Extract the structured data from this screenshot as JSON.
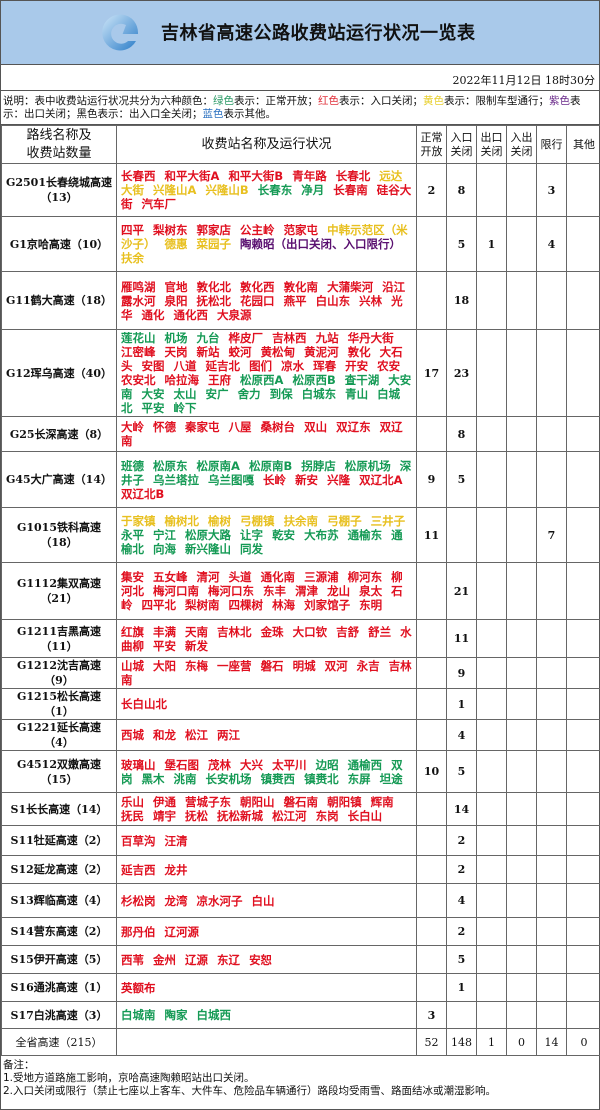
{
  "header": {
    "title": "吉林省高速公路收费站运行状况一览表",
    "datetime": "2022年11月12日 18时30分"
  },
  "legend": {
    "prefix": "说明：表中收费站运行状况共分为六种颜色：",
    "items": [
      {
        "color_word": "绿色",
        "text": "表示：正常开放；",
        "color": "#2a9a66"
      },
      {
        "color_word": "红色",
        "text": "表示：入口关闭；",
        "color": "#e0303a"
      },
      {
        "color_word": "黄色",
        "text": "表示：限制车型通行；",
        "color": "#e8d030"
      },
      {
        "color_word": "紫色",
        "text": "表示：出口关闭；",
        "color": "#6a2a8a"
      },
      {
        "color_word": "黑色",
        "text": "表示：出入口全关闭；",
        "color": "#111111"
      },
      {
        "color_word": "蓝色",
        "text": "表示其他。",
        "color": "#2a70c0"
      }
    ]
  },
  "colors": {
    "g": "#159a55",
    "r": "#e01020",
    "y": "#e8c020",
    "p": "#5a1070",
    "k": "#111111",
    "b": "#2a70c0"
  },
  "table": {
    "headers": [
      "路线名称及\n收费站数量",
      "收费站名称及运行状况",
      "正常\n开放",
      "入口\n关闭",
      "出口\n关闭",
      "入出\n关闭",
      "限行",
      "其他"
    ],
    "rows": [
      {
        "route": "G2501长春绕城高速（13）",
        "stations": [
          [
            "长春西",
            "r"
          ],
          [
            "和平大街A",
            "r"
          ],
          [
            "和平大街B",
            "r"
          ],
          [
            "青年路",
            "r"
          ],
          [
            "长春北",
            "r"
          ],
          [
            "远达大街",
            "y"
          ],
          [
            "兴隆山A",
            "y"
          ],
          [
            "兴隆山B",
            "y"
          ],
          [
            "长春东",
            "g"
          ],
          [
            "净月",
            "g"
          ],
          [
            "长春南",
            "r"
          ],
          [
            "硅谷大街",
            "r"
          ],
          [
            "汽车厂",
            "r"
          ]
        ],
        "counts": [
          "2",
          "8",
          "",
          "",
          "3",
          ""
        ]
      },
      {
        "route": "G1京哈高速（10）",
        "stations": [
          [
            "四平",
            "r"
          ],
          [
            "梨树东",
            "r"
          ],
          [
            "郭家店",
            "r"
          ],
          [
            "公主岭",
            "r"
          ],
          [
            "范家屯",
            "r"
          ],
          [
            "中韩示范区（米沙子）",
            "y"
          ],
          [
            "德惠",
            "y"
          ],
          [
            "菜园子",
            "y"
          ],
          [
            "陶赖昭（出口关闭、入口限行）",
            "p"
          ],
          [
            "扶余",
            "y"
          ]
        ],
        "counts": [
          "",
          "5",
          "1",
          "",
          "4",
          ""
        ]
      },
      {
        "route": "G11鹤大高速（18）",
        "stations": [
          [
            "雁鸣湖",
            "r"
          ],
          [
            "官地",
            "r"
          ],
          [
            "敦化北",
            "r"
          ],
          [
            "敦化西",
            "r"
          ],
          [
            "敦化南",
            "r"
          ],
          [
            "大蒲柴河",
            "r"
          ],
          [
            "沿江",
            "r"
          ],
          [
            "露水河",
            "r"
          ],
          [
            "泉阳",
            "r"
          ],
          [
            "抚松北",
            "r"
          ],
          [
            "花园口",
            "r"
          ],
          [
            "燕平",
            "r"
          ],
          [
            "白山东",
            "r"
          ],
          [
            "兴林",
            "r"
          ],
          [
            "光华",
            "r"
          ],
          [
            "通化",
            "r"
          ],
          [
            "通化西",
            "r"
          ],
          [
            "大泉源",
            "r"
          ]
        ],
        "counts": [
          "",
          "18",
          "",
          "",
          "",
          ""
        ]
      },
      {
        "route": "G12珲乌高速（40）",
        "stations": [
          [
            "莲花山",
            "g"
          ],
          [
            "机场",
            "g"
          ],
          [
            "九台",
            "g"
          ],
          [
            "桦皮厂",
            "r"
          ],
          [
            "吉林西",
            "r"
          ],
          [
            "九站",
            "r"
          ],
          [
            "华丹大街",
            "r"
          ],
          [
            "江密峰",
            "r"
          ],
          [
            "天岗",
            "r"
          ],
          [
            "新站",
            "r"
          ],
          [
            "蛟河",
            "r"
          ],
          [
            "黄松甸",
            "r"
          ],
          [
            "黄泥河",
            "r"
          ],
          [
            "敦化",
            "r"
          ],
          [
            "大石头",
            "r"
          ],
          [
            "安图",
            "r"
          ],
          [
            "八道",
            "r"
          ],
          [
            "延吉北",
            "r"
          ],
          [
            "图们",
            "r"
          ],
          [
            "凉水",
            "r"
          ],
          [
            "珲春",
            "r"
          ],
          [
            "开安",
            "r"
          ],
          [
            "农安",
            "r"
          ],
          [
            "农安北",
            "r"
          ],
          [
            "哈拉海",
            "r"
          ],
          [
            "王府",
            "r"
          ],
          [
            "松原西A",
            "g"
          ],
          [
            "松原西B",
            "g"
          ],
          [
            "查干湖",
            "g"
          ],
          [
            "大安南",
            "g"
          ],
          [
            "大安",
            "g"
          ],
          [
            "太山",
            "g"
          ],
          [
            "安广",
            "g"
          ],
          [
            "舍力",
            "g"
          ],
          [
            "到保",
            "g"
          ],
          [
            "白城东",
            "g"
          ],
          [
            "青山",
            "g"
          ],
          [
            "白城北",
            "g"
          ],
          [
            "平安",
            "g"
          ],
          [
            "岭下",
            "g"
          ]
        ],
        "counts": [
          "17",
          "23",
          "",
          "",
          "",
          ""
        ]
      },
      {
        "route": "G25长深高速（8）",
        "stations": [
          [
            "大岭",
            "r"
          ],
          [
            "怀德",
            "r"
          ],
          [
            "秦家屯",
            "r"
          ],
          [
            "八屋",
            "r"
          ],
          [
            "桑树台",
            "r"
          ],
          [
            "双山",
            "r"
          ],
          [
            "双辽东",
            "r"
          ],
          [
            "双辽南",
            "r"
          ]
        ],
        "counts": [
          "",
          "8",
          "",
          "",
          "",
          ""
        ]
      },
      {
        "route": "G45大广高速（14）",
        "stations": [
          [
            "班德",
            "g"
          ],
          [
            "松原东",
            "g"
          ],
          [
            "松原南A",
            "g"
          ],
          [
            "松原南B",
            "g"
          ],
          [
            "拐脖店",
            "g"
          ],
          [
            "松原机场",
            "g"
          ],
          [
            "深井子",
            "g"
          ],
          [
            "乌兰塔拉",
            "g"
          ],
          [
            "乌兰图嘎",
            "g"
          ],
          [
            "长岭",
            "r"
          ],
          [
            "新安",
            "r"
          ],
          [
            "兴隆",
            "r"
          ],
          [
            "双辽北A",
            "r"
          ],
          [
            "双辽北B",
            "r"
          ]
        ],
        "counts": [
          "9",
          "5",
          "",
          "",
          "",
          ""
        ]
      },
      {
        "route": "G1015铁科高速（18）",
        "stations": [
          [
            "于家镇",
            "y"
          ],
          [
            "榆树北",
            "y"
          ],
          [
            "榆树",
            "y"
          ],
          [
            "弓棚镇",
            "y"
          ],
          [
            "扶余南",
            "y"
          ],
          [
            "弓棚子",
            "y"
          ],
          [
            "三井子",
            "y"
          ],
          [
            "永平",
            "g"
          ],
          [
            "宁江",
            "g"
          ],
          [
            "松原大路",
            "g"
          ],
          [
            "让字",
            "g"
          ],
          [
            "乾安",
            "g"
          ],
          [
            "大布苏",
            "g"
          ],
          [
            "通榆东",
            "g"
          ],
          [
            "通榆北",
            "g"
          ],
          [
            "向海",
            "g"
          ],
          [
            "新兴隆山",
            "g"
          ],
          [
            "同发",
            "g"
          ]
        ],
        "counts": [
          "11",
          "",
          "",
          "",
          "7",
          ""
        ]
      },
      {
        "route": "G1112集双高速（21）",
        "stations": [
          [
            "集安",
            "r"
          ],
          [
            "五女峰",
            "r"
          ],
          [
            "清河",
            "r"
          ],
          [
            "头道",
            "r"
          ],
          [
            "通化南",
            "r"
          ],
          [
            "三源浦",
            "r"
          ],
          [
            "柳河东",
            "r"
          ],
          [
            "柳河北",
            "r"
          ],
          [
            "梅河口南",
            "r"
          ],
          [
            "梅河口东",
            "r"
          ],
          [
            "东丰",
            "r"
          ],
          [
            "渭津",
            "r"
          ],
          [
            "龙山",
            "r"
          ],
          [
            "泉太",
            "r"
          ],
          [
            "石岭",
            "r"
          ],
          [
            "四平北",
            "r"
          ],
          [
            "梨树南",
            "r"
          ],
          [
            "四棵树",
            "r"
          ],
          [
            "林海",
            "r"
          ],
          [
            "刘家馆子",
            "r"
          ],
          [
            "东明",
            "r"
          ]
        ],
        "counts": [
          "",
          "21",
          "",
          "",
          "",
          ""
        ]
      },
      {
        "route": "G1211吉黑高速（11）",
        "stations": [
          [
            "红旗",
            "r"
          ],
          [
            "丰满",
            "r"
          ],
          [
            "天南",
            "r"
          ],
          [
            "吉林北",
            "r"
          ],
          [
            "金珠",
            "r"
          ],
          [
            "大口钦",
            "r"
          ],
          [
            "吉舒",
            "r"
          ],
          [
            "舒兰",
            "r"
          ],
          [
            "水曲柳",
            "r"
          ],
          [
            "平安",
            "r"
          ],
          [
            "新发",
            "r"
          ]
        ],
        "counts": [
          "",
          "11",
          "",
          "",
          "",
          ""
        ]
      },
      {
        "route": "G1212沈吉高速（9）",
        "stations": [
          [
            "山城",
            "r"
          ],
          [
            "大阳",
            "r"
          ],
          [
            "东梅",
            "r"
          ],
          [
            "一座营",
            "r"
          ],
          [
            "磐石",
            "r"
          ],
          [
            "明城",
            "r"
          ],
          [
            "双河",
            "r"
          ],
          [
            "永吉",
            "r"
          ],
          [
            "吉林南",
            "r"
          ]
        ],
        "counts": [
          "",
          "9",
          "",
          "",
          "",
          ""
        ]
      },
      {
        "route": "G1215松长高速（1）",
        "stations": [
          [
            "长白山北",
            "r"
          ]
        ],
        "counts": [
          "",
          "1",
          "",
          "",
          "",
          ""
        ]
      },
      {
        "route": "G1221延长高速（4）",
        "stations": [
          [
            "西城",
            "r"
          ],
          [
            "和龙",
            "r"
          ],
          [
            "松江",
            "r"
          ],
          [
            "两江",
            "r"
          ]
        ],
        "counts": [
          "",
          "4",
          "",
          "",
          "",
          ""
        ]
      },
      {
        "route": "G4512双嫩高速（15）",
        "stations": [
          [
            "玻璃山",
            "r"
          ],
          [
            "堡石图",
            "r"
          ],
          [
            "茂林",
            "r"
          ],
          [
            "大兴",
            "r"
          ],
          [
            "太平川",
            "r"
          ],
          [
            "边昭",
            "g"
          ],
          [
            "通榆西",
            "g"
          ],
          [
            "双岗",
            "g"
          ],
          [
            "黑木",
            "g"
          ],
          [
            "洮南",
            "g"
          ],
          [
            "长安机场",
            "g"
          ],
          [
            "镇赉西",
            "g"
          ],
          [
            "镇赉北",
            "g"
          ],
          [
            "东屏",
            "g"
          ],
          [
            "坦途",
            "g"
          ]
        ],
        "counts": [
          "10",
          "5",
          "",
          "",
          "",
          ""
        ]
      },
      {
        "route": "S1长长高速（14）",
        "stations": [
          [
            "乐山",
            "r"
          ],
          [
            "伊通",
            "r"
          ],
          [
            "营城子东",
            "r"
          ],
          [
            "朝阳山",
            "r"
          ],
          [
            "磐石南",
            "r"
          ],
          [
            "朝阳镇",
            "r"
          ],
          [
            "辉南",
            "r"
          ],
          [
            "抚民",
            "r"
          ],
          [
            "靖宇",
            "r"
          ],
          [
            "抚松",
            "r"
          ],
          [
            "抚松新城",
            "r"
          ],
          [
            "松江河",
            "r"
          ],
          [
            "东岗",
            "r"
          ],
          [
            "长白山",
            "r"
          ]
        ],
        "counts": [
          "",
          "14",
          "",
          "",
          "",
          ""
        ]
      },
      {
        "route": "S11牡延高速（2）",
        "stations": [
          [
            "百草沟",
            "r"
          ],
          [
            "汪清",
            "r"
          ]
        ],
        "counts": [
          "",
          "2",
          "",
          "",
          "",
          ""
        ]
      },
      {
        "route": "S12延龙高速（2）",
        "stations": [
          [
            "延吉西",
            "r"
          ],
          [
            "龙井",
            "r"
          ]
        ],
        "counts": [
          "",
          "2",
          "",
          "",
          "",
          ""
        ]
      },
      {
        "route": "S13辉临高速（4）",
        "stations": [
          [
            "杉松岗",
            "r"
          ],
          [
            "龙湾",
            "r"
          ],
          [
            "凉水河子",
            "r"
          ],
          [
            "白山",
            "r"
          ]
        ],
        "counts": [
          "",
          "4",
          "",
          "",
          "",
          ""
        ]
      },
      {
        "route": "S14营东高速（2）",
        "stations": [
          [
            "那丹伯",
            "r"
          ],
          [
            "辽河源",
            "r"
          ]
        ],
        "counts": [
          "",
          "2",
          "",
          "",
          "",
          ""
        ]
      },
      {
        "route": "S15伊开高速（5）",
        "stations": [
          [
            "西苇",
            "r"
          ],
          [
            "金州",
            "r"
          ],
          [
            "辽源",
            "r"
          ],
          [
            "东辽",
            "r"
          ],
          [
            "安恕",
            "r"
          ]
        ],
        "counts": [
          "",
          "5",
          "",
          "",
          "",
          ""
        ]
      },
      {
        "route": "S16通洮高速（1）",
        "stations": [
          [
            "英额布",
            "r"
          ]
        ],
        "counts": [
          "",
          "1",
          "",
          "",
          "",
          ""
        ]
      },
      {
        "route": "S17白洮高速（3）",
        "stations": [
          [
            "白城南",
            "g"
          ],
          [
            "陶家",
            "g"
          ],
          [
            "白城西",
            "g"
          ]
        ],
        "counts": [
          "3",
          "",
          "",
          "",
          "",
          ""
        ]
      },
      {
        "route": "全省高速（215）",
        "stations": [],
        "counts": [
          "52",
          "148",
          "1",
          "0",
          "14",
          "0"
        ]
      }
    ]
  },
  "notes": {
    "title": "备注：",
    "lines": [
      "1.受地方道路施工影响，京哈高速陶赖昭站出口关闭。",
      "2.入口关闭或限行（禁止七座以上客车、大件车、危险品车辆通行）路段均受雨雪、路面结冰或潮湿影响。"
    ]
  }
}
